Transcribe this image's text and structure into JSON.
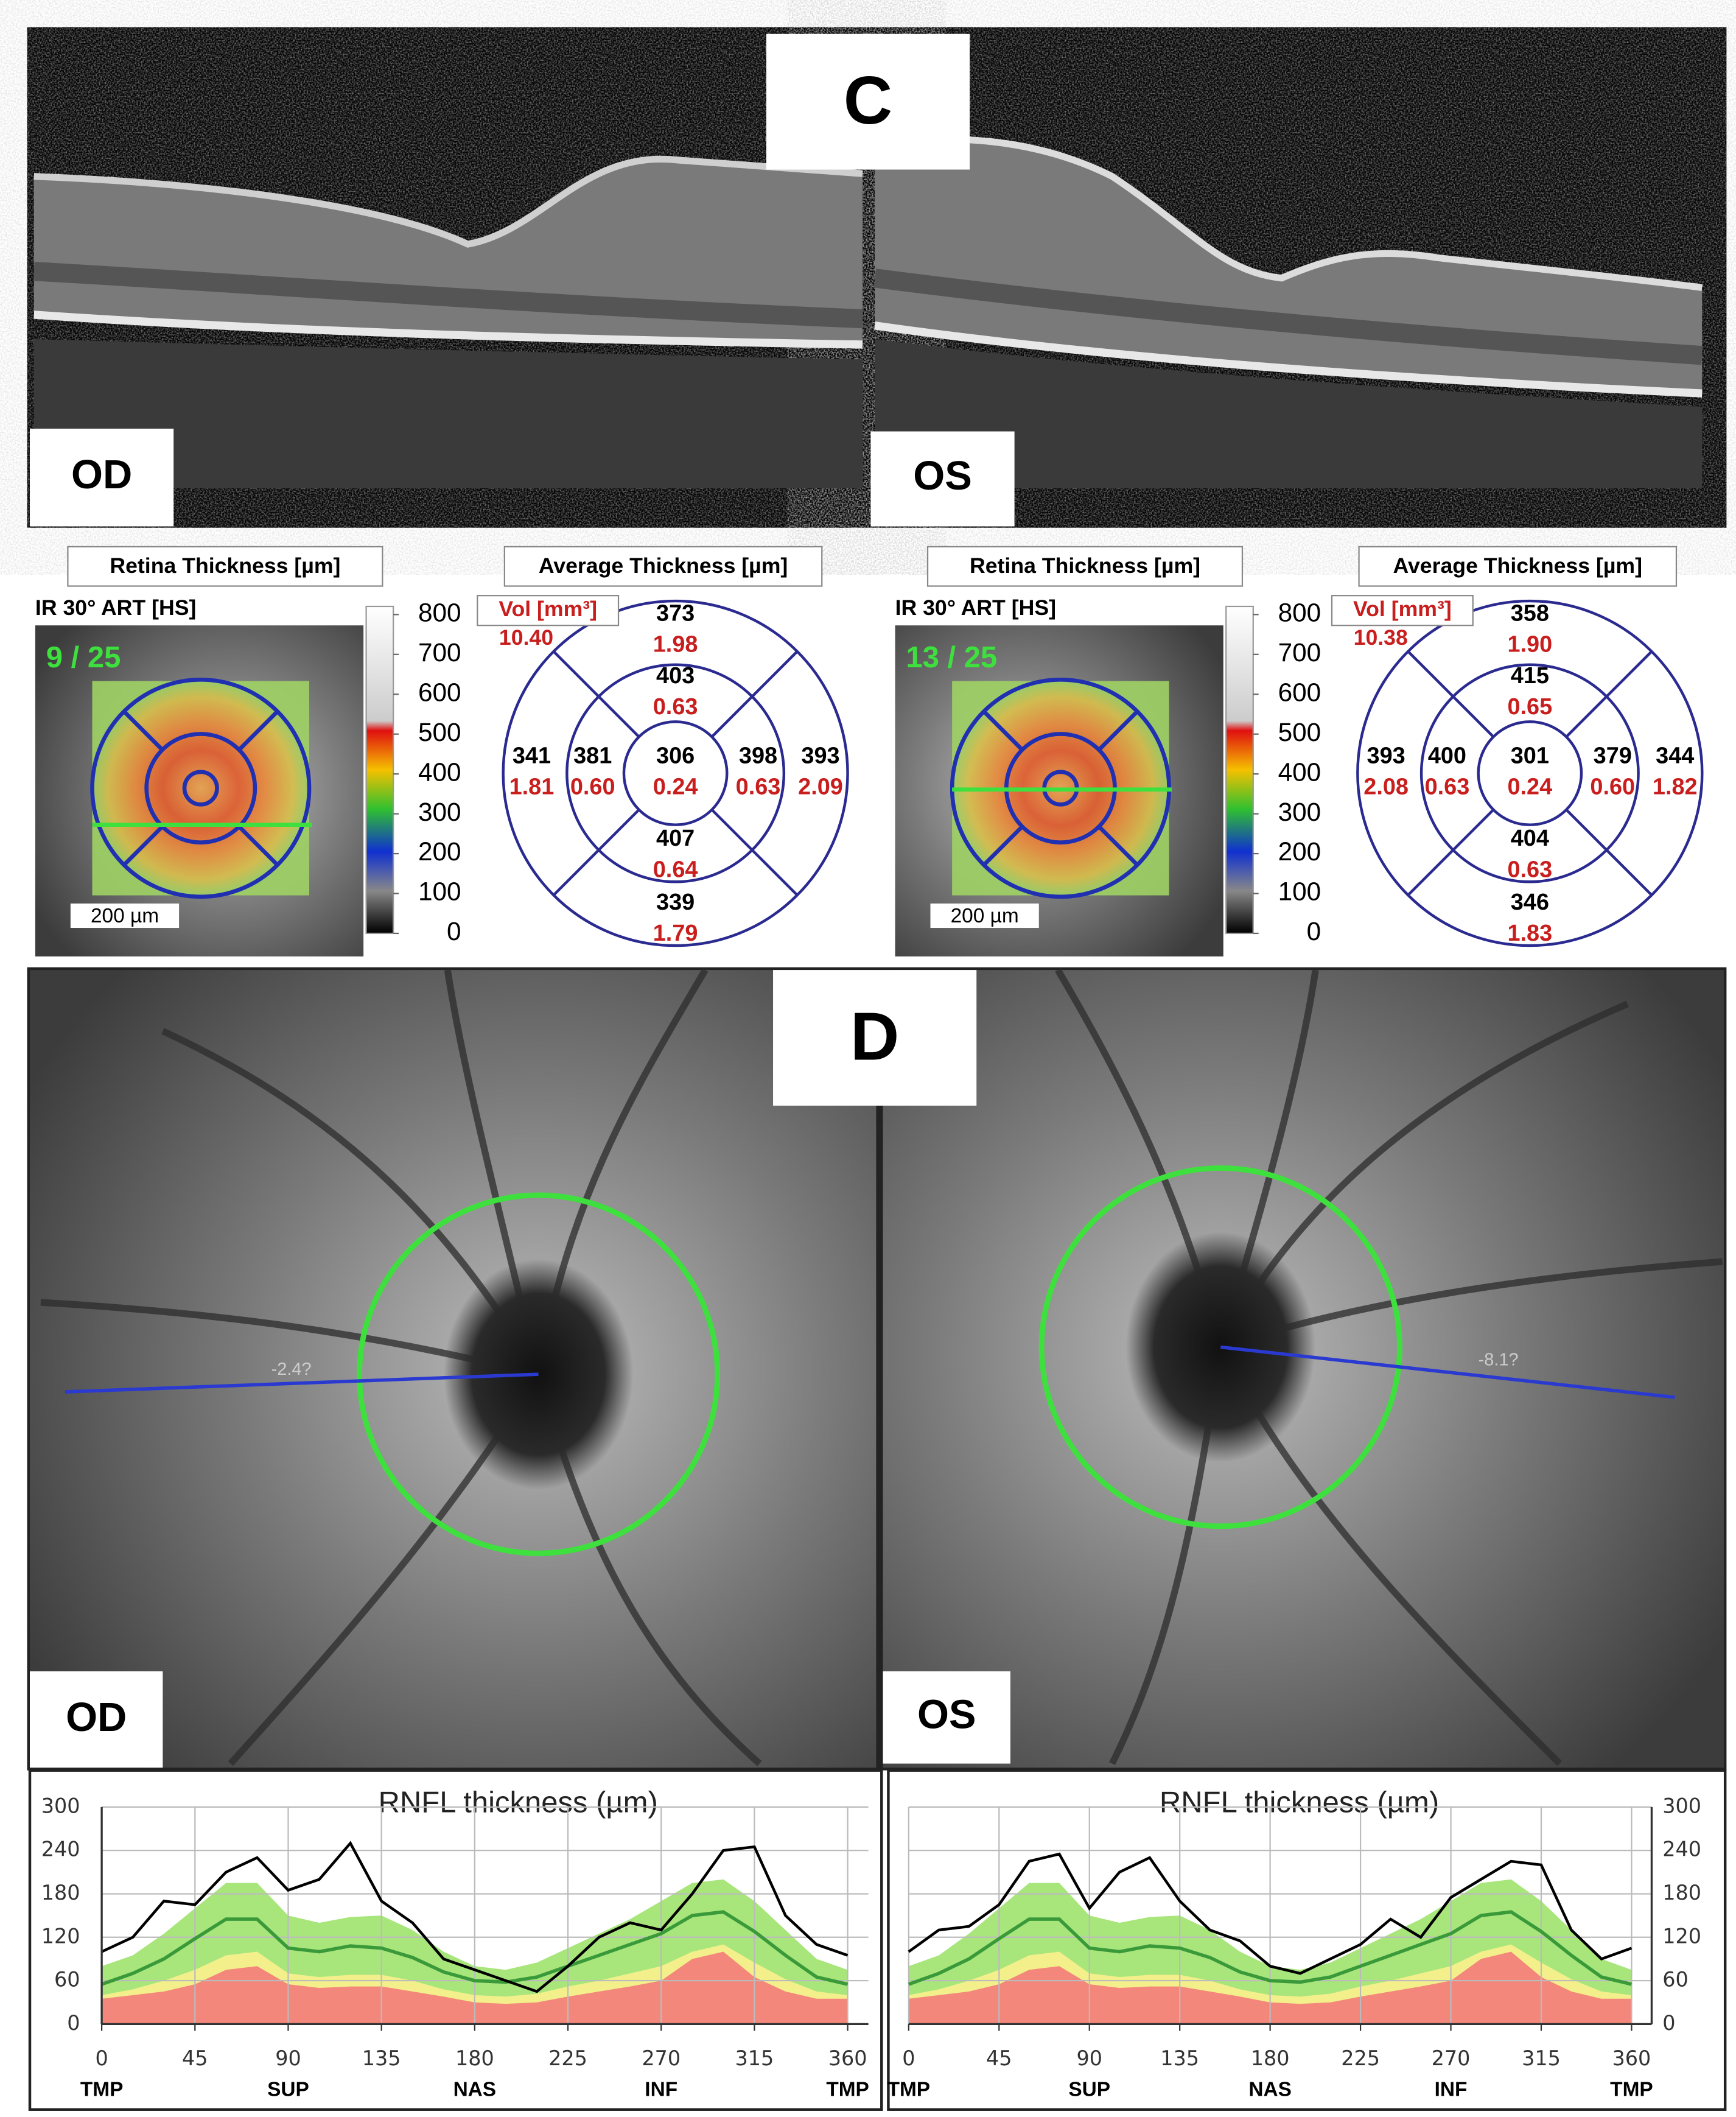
{
  "panel_c": {
    "label": "C",
    "od_label": "OD",
    "os_label": "OS"
  },
  "thickness": [
    {
      "retina_title": "Retina Thickness [µm]",
      "average_title": "Average Thickness [µm]",
      "scan": "IR 30° ART [HS]",
      "count": "9 / 25",
      "scale_bar": "200 µm",
      "colorbar_lim": [
        0,
        800
      ],
      "colorbar_ticks": [
        0,
        100,
        200,
        300,
        400,
        500,
        600,
        700,
        800
      ],
      "vol_label": "Vol [mm³]",
      "total_volume": "10.40",
      "sectors": {
        "center": {
          "thickness": "306",
          "volume": "0.24"
        },
        "inner_top": {
          "thickness": "403",
          "volume": "0.63"
        },
        "inner_left": {
          "thickness": "381",
          "volume": "0.60"
        },
        "inner_right": {
          "thickness": "398",
          "volume": "0.63"
        },
        "inner_bottom": {
          "thickness": "407",
          "volume": "0.64"
        },
        "outer_top": {
          "thickness": "373",
          "volume": "1.98"
        },
        "outer_left": {
          "thickness": "341",
          "volume": "1.81"
        },
        "outer_right": {
          "thickness": "393",
          "volume": "2.09"
        },
        "outer_bottom": {
          "thickness": "339",
          "volume": "1.79"
        }
      }
    },
    {
      "retina_title": "Retina Thickness [µm]",
      "average_title": "Average Thickness [µm]",
      "scan": "IR 30° ART [HS]",
      "count": "13 / 25",
      "scale_bar": "200 µm",
      "colorbar_lim": [
        0,
        800
      ],
      "colorbar_ticks": [
        0,
        100,
        200,
        300,
        400,
        500,
        600,
        700,
        800
      ],
      "vol_label": "Vol [mm³]",
      "total_volume": "10.38",
      "sectors": {
        "center": {
          "thickness": "301",
          "volume": "0.24"
        },
        "inner_top": {
          "thickness": "415",
          "volume": "0.65"
        },
        "inner_left": {
          "thickness": "400",
          "volume": "0.63"
        },
        "inner_right": {
          "thickness": "379",
          "volume": "0.60"
        },
        "inner_bottom": {
          "thickness": "404",
          "volume": "0.63"
        },
        "outer_top": {
          "thickness": "358",
          "volume": "1.90"
        },
        "outer_left": {
          "thickness": "393",
          "volume": "2.08"
        },
        "outer_right": {
          "thickness": "344",
          "volume": "1.82"
        },
        "outer_bottom": {
          "thickness": "346",
          "volume": "1.83"
        }
      }
    }
  ],
  "panel_d": {
    "label": "D",
    "od_label": "OD",
    "os_label": "OS",
    "od_angle": "-2.4?",
    "os_angle": "-8.1?"
  },
  "chart_data": [
    {
      "type": "line",
      "title": "RNFL thickness (µm)",
      "y_axis_side": "left",
      "grid": true,
      "x": [
        0,
        15,
        30,
        45,
        60,
        75,
        90,
        105,
        120,
        135,
        150,
        165,
        180,
        195,
        210,
        225,
        240,
        255,
        270,
        285,
        300,
        315,
        330,
        345,
        360
      ],
      "xlim": [
        0,
        370
      ],
      "ylim": [
        0,
        300
      ],
      "xticks": [
        0,
        45,
        90,
        135,
        180,
        225,
        270,
        315,
        360
      ],
      "yticks": [
        0,
        60,
        120,
        180,
        240,
        300
      ],
      "sector_ticks": [
        {
          "value": 0,
          "label": "TMP"
        },
        {
          "value": 90,
          "label": "SUP"
        },
        {
          "value": 180,
          "label": "NAS"
        },
        {
          "value": 270,
          "label": "INF"
        },
        {
          "value": 360,
          "label": "TMP"
        }
      ],
      "bands": [
        {
          "color": "#a8e67c",
          "values": [
            80,
            95,
            125,
            160,
            195,
            195,
            150,
            140,
            148,
            150,
            130,
            100,
            80,
            75,
            85,
            105,
            125,
            145,
            170,
            195,
            200,
            170,
            130,
            90,
            75
          ]
        },
        {
          "color": "#f3f08c",
          "values": [
            40,
            48,
            60,
            75,
            95,
            100,
            70,
            65,
            68,
            68,
            60,
            48,
            40,
            38,
            42,
            52,
            60,
            70,
            80,
            100,
            110,
            85,
            62,
            45,
            40
          ]
        },
        {
          "color": "#f4877b",
          "values": [
            35,
            40,
            45,
            55,
            75,
            80,
            55,
            50,
            52,
            52,
            45,
            38,
            30,
            28,
            30,
            38,
            45,
            52,
            60,
            90,
            100,
            65,
            45,
            35,
            35
          ]
        }
      ],
      "series": [
        {
          "color": "#3a9a3a",
          "values": [
            55,
            70,
            90,
            118,
            145,
            145,
            105,
            100,
            108,
            105,
            92,
            72,
            60,
            58,
            65,
            80,
            95,
            110,
            125,
            150,
            155,
            128,
            95,
            65,
            55
          ]
        },
        {
          "color": "#000000",
          "values": [
            100,
            120,
            170,
            165,
            210,
            230,
            185,
            200,
            250,
            170,
            140,
            90,
            75,
            60,
            45,
            80,
            120,
            140,
            130,
            180,
            240,
            245,
            150,
            110,
            95
          ]
        }
      ]
    },
    {
      "type": "line",
      "title": "RNFL thickness (µm)",
      "y_axis_side": "right",
      "grid": true,
      "x": [
        0,
        15,
        30,
        45,
        60,
        75,
        90,
        105,
        120,
        135,
        150,
        165,
        180,
        195,
        210,
        225,
        240,
        255,
        270,
        285,
        300,
        315,
        330,
        345,
        360
      ],
      "xlim": [
        0,
        370
      ],
      "ylim": [
        0,
        300
      ],
      "xticks": [
        0,
        45,
        90,
        135,
        180,
        225,
        270,
        315,
        360
      ],
      "yticks": [
        0,
        60,
        120,
        180,
        240,
        300
      ],
      "sector_ticks": [
        {
          "value": 0,
          "label": "TMP"
        },
        {
          "value": 90,
          "label": "SUP"
        },
        {
          "value": 180,
          "label": "NAS"
        },
        {
          "value": 270,
          "label": "INF"
        },
        {
          "value": 360,
          "label": "TMP"
        }
      ],
      "bands": [
        {
          "color": "#a8e67c",
          "values": [
            80,
            95,
            125,
            160,
            195,
            195,
            150,
            140,
            148,
            150,
            130,
            100,
            80,
            75,
            85,
            105,
            125,
            145,
            170,
            195,
            200,
            170,
            130,
            90,
            75
          ]
        },
        {
          "color": "#f3f08c",
          "values": [
            40,
            48,
            60,
            75,
            95,
            100,
            70,
            65,
            68,
            68,
            60,
            48,
            40,
            38,
            42,
            52,
            60,
            70,
            80,
            100,
            110,
            85,
            62,
            45,
            40
          ]
        },
        {
          "color": "#f4877b",
          "values": [
            35,
            40,
            45,
            55,
            75,
            80,
            55,
            50,
            52,
            52,
            45,
            38,
            30,
            28,
            30,
            38,
            45,
            52,
            60,
            90,
            100,
            65,
            45,
            35,
            35
          ]
        }
      ],
      "series": [
        {
          "color": "#3a9a3a",
          "values": [
            55,
            70,
            90,
            118,
            145,
            145,
            105,
            100,
            108,
            105,
            92,
            72,
            60,
            58,
            65,
            80,
            95,
            110,
            125,
            150,
            155,
            128,
            95,
            65,
            55
          ]
        },
        {
          "color": "#000000",
          "values": [
            100,
            130,
            135,
            165,
            225,
            235,
            160,
            210,
            230,
            170,
            130,
            115,
            80,
            70,
            90,
            110,
            145,
            120,
            175,
            200,
            225,
            220,
            130,
            90,
            105
          ]
        }
      ]
    }
  ]
}
